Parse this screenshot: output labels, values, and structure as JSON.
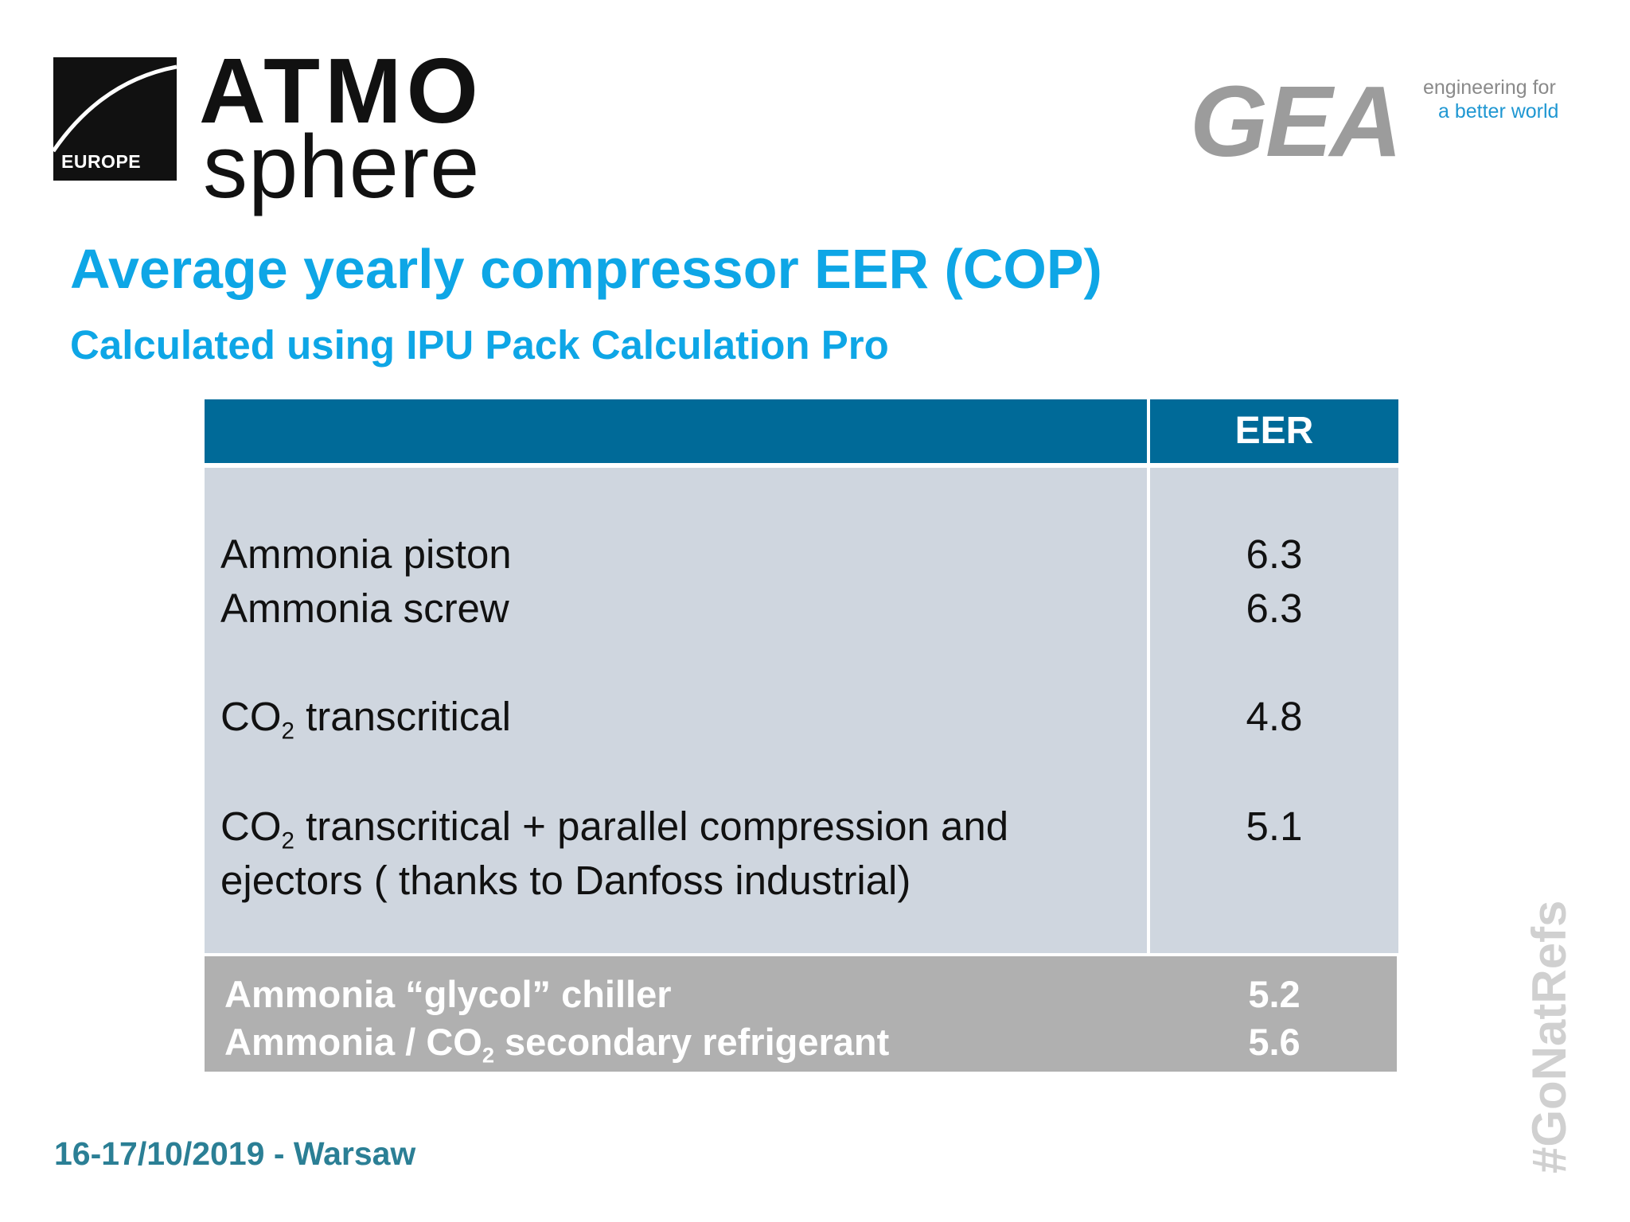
{
  "logos": {
    "atmosphere": {
      "line1": "ATMO",
      "line2": "sphere",
      "badge": "EUROPE"
    },
    "gea": {
      "mark": "GEA",
      "tagline_1": "engineering for",
      "tagline_2": "a better world",
      "tagline_color": "#1f97d2"
    }
  },
  "slide": {
    "title": "Average yearly compressor EER (COP)",
    "subtitle": "Calculated using IPU Pack Calculation Pro",
    "accent_color": "#0ea6e6"
  },
  "table": {
    "header": {
      "col1": "",
      "col2": "EER"
    },
    "header_color": "#006a98",
    "rows": [
      {
        "label": "Ammonia piston",
        "value": "6.3"
      },
      {
        "label": "Ammonia screw",
        "value": "6.3"
      },
      {
        "label_pre": "CO",
        "label_sub": "2",
        "label_post": " transcritical",
        "value": "4.8"
      },
      {
        "label_pre": "CO",
        "label_sub": "2",
        "label_post": " transcritical + parallel compression and",
        "label_line2": "ejectors ( thanks to Danfoss industrial)",
        "value": "5.1"
      }
    ],
    "footer_rows": [
      {
        "label": "Ammonia “glycol” chiller",
        "value": "5.2"
      },
      {
        "label_pre": "Ammonia / CO",
        "label_sub": "2",
        "label_post": " secondary refrigerant",
        "value": "5.6"
      }
    ]
  },
  "footer": {
    "date": "16-17/10/2019 - Warsaw",
    "hashtag": "#GoNatRefs"
  }
}
